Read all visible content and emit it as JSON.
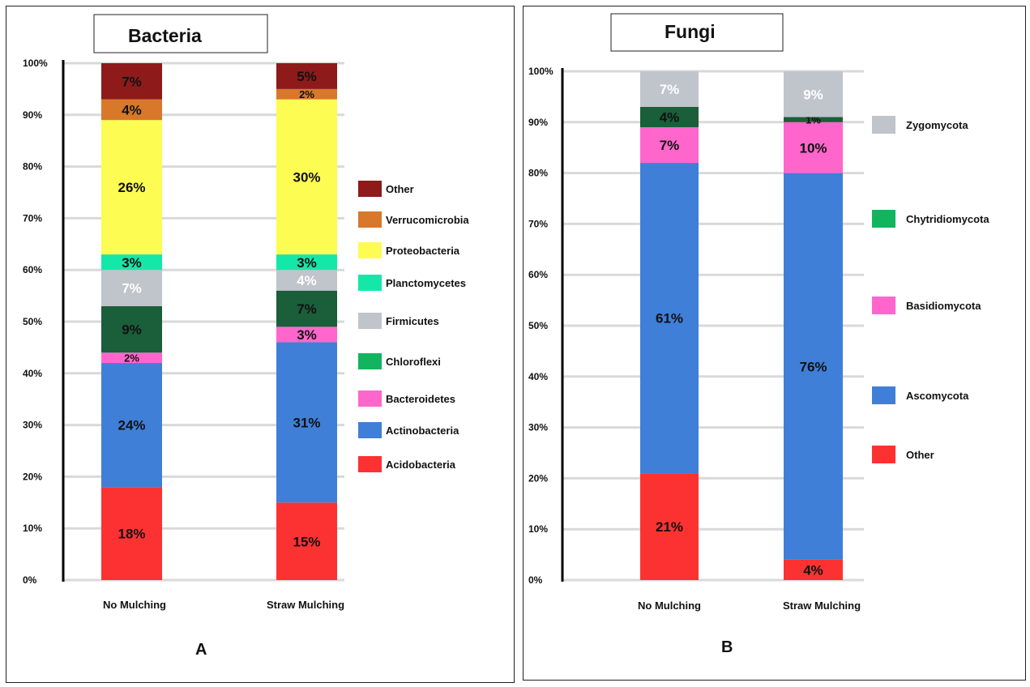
{
  "chart_data": [
    {
      "type": "bar",
      "stacked": true,
      "title": "Bacteria",
      "panel_label": "A",
      "categories": [
        "No Mulching",
        "Straw Mulching"
      ],
      "yticks": [
        "0%",
        "10%",
        "20%",
        "30%",
        "40%",
        "50%",
        "60%",
        "70%",
        "80%",
        "90%",
        "100%"
      ],
      "ylim": [
        0,
        100
      ],
      "series": [
        {
          "name": "Acidobacteria",
          "color": "#fc3232",
          "values": [
            18,
            15
          ],
          "labels": [
            "18%",
            "15%"
          ],
          "label_color": "#111111"
        },
        {
          "name": "Actinobacteria",
          "color": "#3f7fd8",
          "values": [
            24,
            31
          ],
          "labels": [
            "24%",
            "31%"
          ],
          "label_color": "#111111"
        },
        {
          "name": "Bacteroidetes",
          "color": "#ff66cc",
          "values": [
            2,
            3
          ],
          "labels": [
            "2%",
            "3%"
          ],
          "label_color": "#111111"
        },
        {
          "name": "Chloroflexi",
          "color": "#1a5e3a",
          "values": [
            9,
            7
          ],
          "labels": [
            "9%",
            "7%"
          ],
          "label_color": "#111111"
        },
        {
          "name": "Firmicutes",
          "color": "#c0c4cb",
          "values": [
            7,
            4
          ],
          "labels": [
            "7%",
            "4%"
          ],
          "label_color": "#ffffff"
        },
        {
          "name": "Planctomycetes",
          "color": "#14e8a8",
          "values": [
            3,
            3
          ],
          "labels": [
            "3%",
            "3%"
          ],
          "label_color": "#111111"
        },
        {
          "name": "Proteobacteria",
          "color": "#fcfc52",
          "values": [
            26,
            30
          ],
          "labels": [
            "26%",
            "30%"
          ],
          "label_color": "#111111"
        },
        {
          "name": "Verrucomicrobia",
          "color": "#d8782a",
          "values": [
            4,
            2
          ],
          "labels": [
            "4%",
            "2%"
          ],
          "label_color": "#111111"
        },
        {
          "name": "Other",
          "color": "#8e1a1a",
          "values": [
            7,
            5
          ],
          "labels": [
            "7%",
            "5%"
          ],
          "label_color": "#111111"
        }
      ],
      "legend_order": [
        "Other",
        "Verrucomicrobia",
        "Proteobacteria",
        "Planctomycetes",
        "Firmicutes",
        "Chloroflexi",
        "Bacteroidetes",
        "Actinobacteria",
        "Acidobacteria"
      ],
      "legend_legend_swatch": {
        "Chloroflexi": "#12b55e"
      }
    },
    {
      "type": "bar",
      "stacked": true,
      "title": "Fungi",
      "panel_label": "B",
      "categories": [
        "No Mulching",
        "Straw Mulching"
      ],
      "yticks": [
        "0%",
        "10%",
        "20%",
        "30%",
        "40%",
        "50%",
        "60%",
        "70%",
        "80%",
        "90%",
        "100%"
      ],
      "ylim": [
        0,
        100
      ],
      "series": [
        {
          "name": "Other",
          "color": "#fc3232",
          "values": [
            21,
            4
          ],
          "labels": [
            "21%",
            "4%"
          ],
          "label_color": "#111111"
        },
        {
          "name": "Ascomycota",
          "color": "#3f7fd8",
          "values": [
            61,
            76
          ],
          "labels": [
            "61%",
            "76%"
          ],
          "label_color": "#111111"
        },
        {
          "name": "Basidiomycota",
          "color": "#ff66cc",
          "values": [
            7,
            10
          ],
          "labels": [
            "7%",
            "10%"
          ],
          "label_color": "#111111"
        },
        {
          "name": "Chytridiomycota",
          "color": "#1a5e3a",
          "values": [
            4,
            1
          ],
          "labels": [
            "4%",
            "1%"
          ],
          "label_color": "#111111"
        },
        {
          "name": "Zygomycota",
          "color": "#c0c4cb",
          "values": [
            7,
            9
          ],
          "labels": [
            "7%",
            "9%"
          ],
          "label_color": "#ffffff"
        }
      ],
      "legend_order": [
        "Zygomycota",
        "Chytridiomycota",
        "Basidiomycota",
        "Ascomycota",
        "Other"
      ],
      "legend_legend_swatch": {
        "Chytridiomycota": "#12b55e"
      }
    }
  ]
}
